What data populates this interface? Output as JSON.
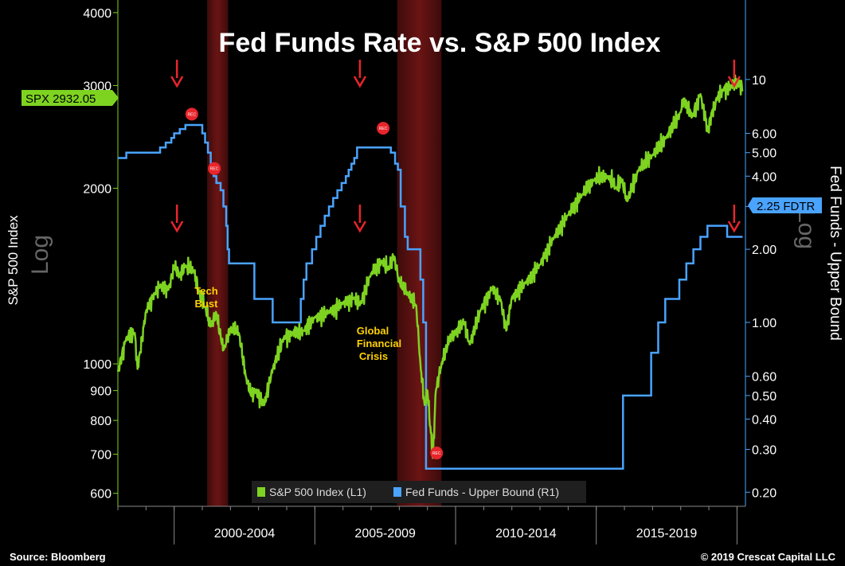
{
  "chart_data": {
    "type": "line",
    "title": "Fed Funds Rate vs. S&P 500 Index",
    "left_axis": {
      "label": "S&P 500 Index",
      "scale_label": "Log",
      "scale": "log",
      "ticks": [
        600,
        700,
        800,
        900,
        1000,
        2000,
        3000,
        4000
      ],
      "tick_labels": [
        "600",
        "700",
        "800",
        "900",
        "1000",
        "2000",
        "3000",
        "4000"
      ],
      "range": [
        570,
        4100
      ]
    },
    "right_axis": {
      "label": "Fed Funds - Upper Bound",
      "scale_label": "Log",
      "scale": "log",
      "ticks": [
        0.2,
        0.3,
        0.4,
        0.5,
        0.6,
        1,
        2,
        3,
        4,
        5,
        6,
        10
      ],
      "tick_labels": [
        "0.20",
        "0.30",
        "0.40",
        "0.50",
        "0.60",
        "1.00",
        "2.00",
        "3.00",
        "4.00",
        "5.00",
        "6.00",
        "10"
      ],
      "range": [
        0.175,
        20
      ]
    },
    "x_axis": {
      "period_labels": [
        "2000-2004",
        "2005-2009",
        "2010-2014",
        "2015-2019"
      ],
      "period_bounds": [
        1998.0,
        2000.0,
        2005.0,
        2010.0,
        2015.0,
        2020.0
      ],
      "range": [
        1998.0,
        2020.3
      ]
    },
    "recessions": [
      [
        2001.17,
        2001.92
      ],
      [
        2007.92,
        2009.5
      ]
    ],
    "series": [
      {
        "name": "S&P 500 Index (L1)",
        "color": "#7ed321",
        "axis": "left",
        "x": [
          1998.0,
          1998.3,
          1998.6,
          1998.7,
          1999.0,
          1999.3,
          1999.5,
          1999.8,
          2000.0,
          2000.2,
          2000.4,
          2000.7,
          2000.9,
          2001.1,
          2001.3,
          2001.5,
          2001.7,
          2001.8,
          2002.0,
          2002.3,
          2002.55,
          2002.75,
          2002.9,
          2003.2,
          2003.5,
          2003.9,
          2004.2,
          2004.6,
          2005.0,
          2005.5,
          2006.0,
          2006.4,
          2006.6,
          2007.0,
          2007.4,
          2007.6,
          2007.8,
          2008.0,
          2008.3,
          2008.6,
          2008.75,
          2008.9,
          2009.0,
          2009.19,
          2009.3,
          2009.5,
          2009.8,
          2010.0,
          2010.3,
          2010.5,
          2010.9,
          2011.3,
          2011.6,
          2011.8,
          2012.0,
          2012.5,
          2013.0,
          2013.5,
          2014.0,
          2014.5,
          2014.9,
          2015.4,
          2015.7,
          2015.9,
          2016.1,
          2016.5,
          2017.0,
          2017.5,
          2018.0,
          2018.1,
          2018.4,
          2018.7,
          2018.97,
          2019.1,
          2019.3,
          2019.5,
          2019.8,
          2020.1,
          2020.2
        ],
        "values": [
          970,
          1110,
          1130,
          980,
          1230,
          1320,
          1360,
          1340,
          1470,
          1420,
          1470,
          1440,
          1320,
          1250,
          1160,
          1220,
          1080,
          1070,
          1150,
          1130,
          950,
          880,
          900,
          850,
          980,
          1110,
          1130,
          1140,
          1200,
          1230,
          1270,
          1300,
          1260,
          1430,
          1500,
          1450,
          1530,
          1380,
          1320,
          1260,
          1000,
          850,
          900,
          690,
          900,
          1000,
          1110,
          1130,
          1180,
          1080,
          1240,
          1350,
          1290,
          1140,
          1300,
          1380,
          1480,
          1650,
          1800,
          1950,
          2060,
          2100,
          2000,
          2070,
          1900,
          2150,
          2280,
          2450,
          2700,
          2850,
          2650,
          2900,
          2500,
          2700,
          2850,
          2950,
          3000,
          3050,
          2932
        ]
      },
      {
        "name": "Fed Funds - Upper Bound (R1)",
        "color": "#4aa3ff",
        "axis": "right",
        "steps": [
          [
            1998.0,
            4.75
          ],
          [
            1998.3,
            5.0
          ],
          [
            1999.4,
            5.0
          ],
          [
            1999.5,
            5.25
          ],
          [
            1999.7,
            5.5
          ],
          [
            1999.9,
            5.75
          ],
          [
            2000.0,
            6.0
          ],
          [
            2000.2,
            6.25
          ],
          [
            2000.4,
            6.5
          ],
          [
            2000.95,
            6.5
          ],
          [
            2001.0,
            6.0
          ],
          [
            2001.1,
            5.5
          ],
          [
            2001.2,
            5.0
          ],
          [
            2001.3,
            4.5
          ],
          [
            2001.4,
            4.0
          ],
          [
            2001.5,
            3.75
          ],
          [
            2001.65,
            3.5
          ],
          [
            2001.75,
            3.0
          ],
          [
            2001.85,
            2.5
          ],
          [
            2001.9,
            2.0
          ],
          [
            2001.95,
            1.75
          ],
          [
            2002.85,
            1.25
          ],
          [
            2003.5,
            1.0
          ],
          [
            2004.5,
            1.25
          ],
          [
            2004.6,
            1.5
          ],
          [
            2004.7,
            1.75
          ],
          [
            2004.9,
            2.0
          ],
          [
            2005.05,
            2.25
          ],
          [
            2005.2,
            2.5
          ],
          [
            2005.35,
            2.75
          ],
          [
            2005.5,
            3.0
          ],
          [
            2005.65,
            3.25
          ],
          [
            2005.8,
            3.5
          ],
          [
            2005.95,
            3.75
          ],
          [
            2006.1,
            4.0
          ],
          [
            2006.2,
            4.25
          ],
          [
            2006.3,
            4.5
          ],
          [
            2006.4,
            4.75
          ],
          [
            2006.5,
            5.25
          ],
          [
            2007.7,
            5.0
          ],
          [
            2007.85,
            4.5
          ],
          [
            2007.95,
            4.25
          ],
          [
            2008.05,
            3.0
          ],
          [
            2008.2,
            2.25
          ],
          [
            2008.3,
            2.0
          ],
          [
            2008.75,
            1.5
          ],
          [
            2008.85,
            1.0
          ],
          [
            2008.95,
            0.25
          ],
          [
            2015.95,
            0.5
          ],
          [
            2016.95,
            0.75
          ],
          [
            2017.2,
            1.0
          ],
          [
            2017.45,
            1.25
          ],
          [
            2017.95,
            1.5
          ],
          [
            2018.2,
            1.75
          ],
          [
            2018.45,
            2.0
          ],
          [
            2018.7,
            2.25
          ],
          [
            2018.95,
            2.5
          ],
          [
            2019.6,
            2.5
          ],
          [
            2019.65,
            2.25
          ],
          [
            2020.2,
            2.25
          ]
        ]
      }
    ],
    "annotations": [
      {
        "text_lines": [
          "Tech",
          "Bust"
        ]
      },
      {
        "text_lines": [
          "Global",
          "Financial",
          "Crisis"
        ]
      }
    ],
    "arrow_years": [
      2000.1,
      2006.6,
      2019.9
    ],
    "rec_markers": [
      {
        "x": 2000.4,
        "axis": "right",
        "value": 7.2
      },
      {
        "x": 2001.2,
        "axis": "right",
        "value": 4.3
      },
      {
        "x": 2007.2,
        "axis": "right",
        "value": 6.3
      },
      {
        "x": 2009.1,
        "axis": "right",
        "value": 0.29
      }
    ],
    "left_tag": "SPX 2932.05",
    "right_tag": "2.25 FDTR",
    "legend": {
      "position": "bottom-center",
      "entries": [
        "S&P 500 Index (L1)",
        "Fed Funds - Upper Bound (R1)"
      ]
    },
    "grid": false
  },
  "footer": {
    "source": "Source: Bloomberg",
    "copyright": "© 2019 Crescat Capital LLC"
  }
}
